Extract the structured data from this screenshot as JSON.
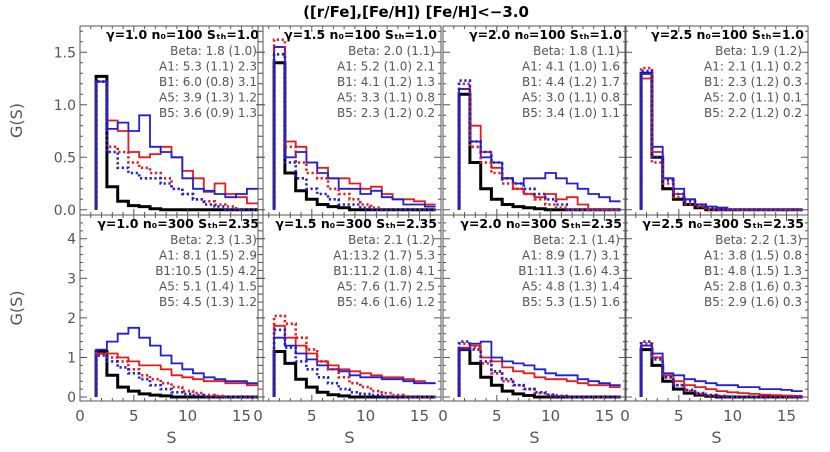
{
  "title": "([r/Fe],[Fe/H])      [Fe/H]<−3.0",
  "colors": {
    "black": "#000000",
    "red": "#e41a1c",
    "blue": "#1f1fd6",
    "axis": "#555555"
  },
  "chart_data": {
    "type": "histogram-grid",
    "xlabel": "S",
    "ylabel": "G(S)",
    "xlim": [
      0,
      17
    ],
    "xticks": [
      0,
      5,
      10,
      15
    ],
    "bins": [
      1.5,
      2.5,
      3.5,
      4.5,
      5.5,
      6.5,
      7.5,
      8.5,
      9.5,
      10.5,
      11.5,
      12.5,
      13.5,
      14.5,
      15.5,
      16.5
    ],
    "series_styles": [
      {
        "key": "beta",
        "color": "black",
        "dash": "solid",
        "width": 3
      },
      {
        "key": "A1",
        "color": "red",
        "dash": "solid",
        "width": 1.8
      },
      {
        "key": "B1",
        "color": "blue",
        "dash": "solid",
        "width": 1.8
      },
      {
        "key": "A5",
        "color": "red",
        "dash": "dotted",
        "width": 2.6
      },
      {
        "key": "B5",
        "color": "blue",
        "dash": "dotted",
        "width": 2.6
      }
    ],
    "rows": [
      {
        "ylim": [
          -0.05,
          1.75
        ],
        "yticks": [
          0.0,
          0.5,
          1.0,
          1.5
        ],
        "yticklabels": [
          "0.0",
          "0.5",
          "1.0",
          "1.5"
        ],
        "panels": [
          {
            "gamma": "1.0",
            "n": "100",
            "sth": "1.0",
            "title": "γ=1.0  n₀=100  Sₜₕ=1.0",
            "stats": [
              "Beta: 1.8 (1.0)",
              "A1: 5.3 (1.1) 2.3",
              "B1: 6.0 (0.8) 3.1",
              "A5: 3.9 (1.3) 1.2",
              "B5: 3.6 (0.9) 1.3"
            ],
            "beta": [
              1.27,
              0.22,
              0.08,
              0.04,
              0.03,
              0.01,
              0.0,
              0.0,
              0.0,
              0.0,
              0.0,
              0.0,
              0.0,
              0.0,
              0.0,
              0.0
            ],
            "A1": [
              1.22,
              0.85,
              0.75,
              0.55,
              0.5,
              0.53,
              0.6,
              0.5,
              0.37,
              0.3,
              0.17,
              0.25,
              0.15,
              0.12,
              0.06,
              0.05
            ],
            "B1": [
              1.22,
              0.77,
              0.83,
              0.75,
              0.9,
              0.6,
              0.55,
              0.5,
              0.3,
              0.2,
              0.18,
              0.15,
              0.12,
              0.15,
              0.2,
              0.15
            ],
            "A5": [
              1.22,
              0.6,
              0.55,
              0.45,
              0.4,
              0.35,
              0.3,
              0.2,
              0.15,
              0.1,
              0.08,
              0.05,
              0.03,
              0.0,
              0.0,
              0.0
            ],
            "B5": [
              1.22,
              0.55,
              0.4,
              0.35,
              0.3,
              0.3,
              0.25,
              0.2,
              0.15,
              0.1,
              0.05,
              0.03,
              0.0,
              0.0,
              0.0,
              0.0
            ]
          },
          {
            "gamma": "1.5",
            "n": "100",
            "sth": "1.0",
            "title": "γ=1.5  n₀=100  Sₜₕ=1.0",
            "stats": [
              "Beta: 2.0 (1.1)",
              "A1: 5.2 (1.0) 2.1",
              "B1: 4.1 (1.2) 1.3",
              "A5: 3.3 (1.1) 0.8",
              "B5: 2.3 (1.2) 0.2"
            ],
            "beta": [
              1.4,
              0.35,
              0.18,
              0.1,
              0.05,
              0.03,
              0.02,
              0.0,
              0.0,
              0.0,
              0.0,
              0.0,
              0.0,
              0.0,
              0.0,
              0.0
            ],
            "A1": [
              1.55,
              0.65,
              0.6,
              0.45,
              0.4,
              0.3,
              0.3,
              0.25,
              0.2,
              0.22,
              0.15,
              0.1,
              0.1,
              0.08,
              0.05,
              0.0
            ],
            "B1": [
              1.55,
              0.5,
              0.55,
              0.45,
              0.35,
              0.3,
              0.2,
              0.2,
              0.15,
              0.18,
              0.12,
              0.1,
              0.05,
              0.05,
              0.03,
              0.0
            ],
            "A5": [
              1.62,
              0.6,
              0.45,
              0.35,
              0.3,
              0.2,
              0.15,
              0.1,
              0.05,
              0.02,
              0.0,
              0.0,
              0.0,
              0.0,
              0.0,
              0.0
            ],
            "B5": [
              1.48,
              0.45,
              0.3,
              0.2,
              0.15,
              0.1,
              0.05,
              0.05,
              0.02,
              0.0,
              0.0,
              0.0,
              0.0,
              0.0,
              0.0,
              0.0
            ]
          },
          {
            "gamma": "2.0",
            "n": "100",
            "sth": "1.0",
            "title": "γ=2.0  n₀=100  Sₜₕ=1.0",
            "stats": [
              "Beta: 1.8 (1.1)",
              "A1: 4.1 (1.0) 1.6",
              "B1: 4.4 (1.2) 1.7",
              "A5: 3.0 (1.1) 0.8",
              "B5: 3.4 (1.0) 1.1"
            ],
            "beta": [
              1.1,
              0.45,
              0.2,
              0.1,
              0.05,
              0.03,
              0.02,
              0.01,
              0.0,
              0.0,
              0.0,
              0.0,
              0.0,
              0.0,
              0.0,
              0.0
            ],
            "A1": [
              1.15,
              0.8,
              0.55,
              0.4,
              0.3,
              0.2,
              0.15,
              0.12,
              0.15,
              0.1,
              0.12,
              0.05,
              0.0,
              0.0,
              0.0,
              0.0
            ],
            "B1": [
              1.15,
              0.65,
              0.5,
              0.45,
              0.3,
              0.25,
              0.3,
              0.3,
              0.35,
              0.3,
              0.25,
              0.2,
              0.15,
              0.12,
              0.08,
              0.05
            ],
            "A5": [
              1.2,
              0.6,
              0.45,
              0.35,
              0.25,
              0.2,
              0.15,
              0.1,
              0.05,
              0.02,
              0.0,
              0.0,
              0.0,
              0.0,
              0.0,
              0.0
            ],
            "B5": [
              1.23,
              0.65,
              0.55,
              0.45,
              0.3,
              0.25,
              0.2,
              0.15,
              0.1,
              0.05,
              0.0,
              0.0,
              0.0,
              0.0,
              0.0,
              0.0
            ]
          },
          {
            "gamma": "2.5",
            "n": "100",
            "sth": "1.0",
            "title": "γ=2.5  n₀=100  Sₜₕ=1.0",
            "stats": [
              "Beta: 1.9 (1.2)",
              "A1: 2.1 (1.1) 0.2",
              "B1: 2.3 (1.2) 0.3",
              "A5: 2.0 (1.1) 0.1",
              "B5: 2.2 (1.2) 0.2"
            ],
            "beta": [
              1.3,
              0.5,
              0.2,
              0.1,
              0.05,
              0.02,
              0.0,
              0.0,
              0.0,
              0.0,
              0.0,
              0.0,
              0.0,
              0.0,
              0.0,
              0.0
            ],
            "A1": [
              1.25,
              0.55,
              0.3,
              0.15,
              0.1,
              0.05,
              0.03,
              0.02,
              0.0,
              0.0,
              0.0,
              0.0,
              0.0,
              0.0,
              0.0,
              0.0
            ],
            "B1": [
              1.3,
              0.6,
              0.3,
              0.2,
              0.1,
              0.05,
              0.03,
              0.02,
              0.0,
              0.0,
              0.0,
              0.0,
              0.0,
              0.0,
              0.0,
              0.0
            ],
            "A5": [
              1.35,
              0.45,
              0.25,
              0.12,
              0.05,
              0.03,
              0.0,
              0.0,
              0.0,
              0.0,
              0.0,
              0.0,
              0.0,
              0.0,
              0.0,
              0.0
            ],
            "B5": [
              1.32,
              0.5,
              0.28,
              0.15,
              0.08,
              0.05,
              0.02,
              0.0,
              0.0,
              0.0,
              0.0,
              0.0,
              0.0,
              0.0,
              0.0,
              0.0
            ]
          }
        ]
      },
      {
        "ylim": [
          -0.1,
          4.6
        ],
        "yticks": [
          0,
          1,
          2,
          3,
          4
        ],
        "yticklabels": [
          "0",
          "1",
          "2",
          "3",
          "4"
        ],
        "panels": [
          {
            "gamma": "1.0",
            "n": "300",
            "sth": "2.35",
            "title": "γ=1.0  n₀=300  Sₜₕ=2.35",
            "stats": [
              "Beta: 2.3 (1.3)",
              "A1: 8.1 (1.5) 2.9",
              "B1:10.5 (1.5) 4.2",
              "A5: 5.1 (1.4) 1.5",
              "B5: 4.5 (1.3) 1.2"
            ],
            "beta": [
              1.15,
              0.55,
              0.25,
              0.15,
              0.08,
              0.05,
              0.03,
              0.0,
              0.0,
              0.0,
              0.0,
              0.0,
              0.0,
              0.0,
              0.0,
              0.0
            ],
            "A1": [
              1.1,
              1.1,
              1.0,
              0.9,
              0.8,
              0.8,
              0.7,
              0.55,
              0.5,
              0.45,
              0.4,
              0.4,
              0.35,
              0.35,
              0.3,
              0.25
            ],
            "B1": [
              1.2,
              1.4,
              1.6,
              1.75,
              1.5,
              1.3,
              1.05,
              0.85,
              0.7,
              0.6,
              0.5,
              0.45,
              0.4,
              0.4,
              0.35,
              0.3
            ],
            "A5": [
              1.1,
              1.0,
              0.9,
              0.7,
              0.55,
              0.45,
              0.35,
              0.25,
              0.15,
              0.1,
              0.05,
              0.03,
              0.0,
              0.0,
              0.0,
              0.0
            ],
            "B5": [
              1.05,
              0.9,
              0.75,
              0.6,
              0.45,
              0.3,
              0.2,
              0.12,
              0.08,
              0.05,
              0.0,
              0.0,
              0.0,
              0.0,
              0.0,
              0.0
            ]
          },
          {
            "gamma": "1.5",
            "n": "300",
            "sth": "2.35",
            "title": "γ=1.5  n₀=300  Sₜₕ=2.35",
            "stats": [
              "Beta: 2.1 (1.2)",
              "A1:13.2 (1.7) 5.3",
              "B1:11.2 (1.8) 4.1",
              "A5: 7.6 (1.7) 2.5",
              "B5: 4.6 (1.6) 1.2"
            ],
            "beta": [
              1.15,
              0.85,
              0.45,
              0.25,
              0.12,
              0.06,
              0.03,
              0.0,
              0.0,
              0.0,
              0.0,
              0.0,
              0.0,
              0.0,
              0.0,
              0.0
            ],
            "A1": [
              1.8,
              1.5,
              1.3,
              1.1,
              0.9,
              0.8,
              0.7,
              0.65,
              0.6,
              0.55,
              0.5,
              0.5,
              0.45,
              0.4,
              0.35,
              0.3
            ],
            "B1": [
              1.5,
              1.3,
              1.1,
              0.95,
              0.8,
              0.7,
              0.65,
              0.55,
              0.5,
              0.5,
              0.45,
              0.45,
              0.4,
              0.35,
              0.35,
              0.3
            ],
            "A5": [
              2.05,
              1.85,
              1.5,
              1.2,
              0.9,
              0.7,
              0.5,
              0.35,
              0.25,
              0.15,
              0.1,
              0.05,
              0.0,
              0.0,
              0.0,
              0.0
            ],
            "B5": [
              1.7,
              1.25,
              0.9,
              0.7,
              0.5,
              0.35,
              0.2,
              0.12,
              0.08,
              0.05,
              0.0,
              0.0,
              0.0,
              0.0,
              0.0,
              0.0
            ]
          },
          {
            "gamma": "2.0",
            "n": "300",
            "sth": "2.35",
            "title": "γ=2.0  n₀=300  Sₜₕ=2.35",
            "stats": [
              "Beta: 2.1 (1.4)",
              "A1: 8.9 (1.7) 3.1",
              "B1:11.3 (1.6) 4.3",
              "A5: 4.8 (1.3) 1.4",
              "B5: 5.3 (1.5) 1.6"
            ],
            "beta": [
              1.2,
              0.85,
              0.5,
              0.3,
              0.15,
              0.08,
              0.04,
              0.0,
              0.0,
              0.0,
              0.0,
              0.0,
              0.0,
              0.0,
              0.0,
              0.0
            ],
            "A1": [
              1.25,
              1.3,
              1.0,
              0.9,
              0.75,
              0.65,
              0.6,
              0.5,
              0.45,
              0.45,
              0.4,
              0.35,
              0.3,
              0.3,
              0.25,
              0.2
            ],
            "B1": [
              1.2,
              1.35,
              1.4,
              1.0,
              0.9,
              0.85,
              0.8,
              0.7,
              0.6,
              0.55,
              0.55,
              0.45,
              0.4,
              0.35,
              0.3,
              0.3
            ],
            "A5": [
              1.35,
              1.25,
              0.85,
              0.6,
              0.4,
              0.3,
              0.2,
              0.1,
              0.05,
              0.02,
              0.0,
              0.0,
              0.0,
              0.0,
              0.0,
              0.0
            ],
            "B5": [
              1.4,
              1.2,
              0.9,
              0.65,
              0.45,
              0.3,
              0.2,
              0.12,
              0.06,
              0.03,
              0.0,
              0.0,
              0.0,
              0.0,
              0.0,
              0.0
            ]
          },
          {
            "gamma": "2.5",
            "n": "300",
            "sth": "2.35",
            "title": "γ=2.5  n₀=300  Sₜₕ=2.35",
            "stats": [
              "Beta: 2.2 (1.3)",
              "A1: 3.8 (1.5) 0.8",
              "B1: 4.8 (1.5) 1.3",
              "A5: 2.8 (1.6) 0.3",
              "B5: 2.9 (1.6) 0.3"
            ],
            "beta": [
              1.2,
              0.8,
              0.4,
              0.2,
              0.1,
              0.05,
              0.02,
              0.0,
              0.0,
              0.0,
              0.0,
              0.0,
              0.0,
              0.0,
              0.0,
              0.0
            ],
            "A1": [
              1.3,
              1.0,
              0.55,
              0.4,
              0.3,
              0.25,
              0.2,
              0.15,
              0.12,
              0.1,
              0.08,
              0.06,
              0.05,
              0.04,
              0.03,
              0.02
            ],
            "B1": [
              1.3,
              1.1,
              0.6,
              0.55,
              0.45,
              0.4,
              0.35,
              0.3,
              0.3,
              0.25,
              0.25,
              0.2,
              0.2,
              0.18,
              0.15,
              0.12
            ],
            "A5": [
              1.35,
              1.0,
              0.5,
              0.3,
              0.15,
              0.08,
              0.04,
              0.02,
              0.0,
              0.0,
              0.0,
              0.0,
              0.0,
              0.0,
              0.0,
              0.0
            ],
            "B5": [
              1.4,
              0.95,
              0.5,
              0.3,
              0.18,
              0.1,
              0.05,
              0.03,
              0.0,
              0.0,
              0.0,
              0.0,
              0.0,
              0.0,
              0.0,
              0.0
            ]
          }
        ]
      }
    ]
  }
}
